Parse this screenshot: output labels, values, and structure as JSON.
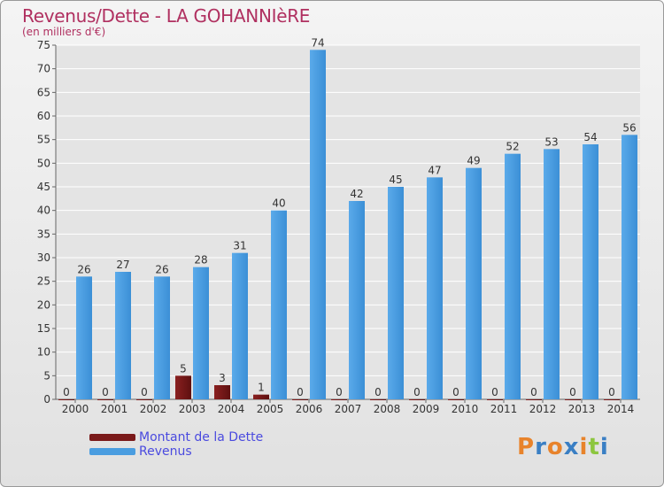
{
  "chart_data": {
    "type": "bar",
    "title": "Revenus/Dette - LA GOHANNIèRE",
    "subtitle": "(en milliers d'€)",
    "categories": [
      "2000",
      "2001",
      "2002",
      "2003",
      "2004",
      "2005",
      "2006",
      "2007",
      "2008",
      "2009",
      "2010",
      "2011",
      "2012",
      "2013",
      "2014"
    ],
    "series": [
      {
        "name": "Montant de la Dette",
        "color": "#7a1a1a",
        "values": [
          0,
          0,
          0,
          5,
          3,
          1,
          0,
          0,
          0,
          0,
          0,
          0,
          0,
          0,
          0
        ]
      },
      {
        "name": "Revenus",
        "color": "#4a9de0",
        "values": [
          26,
          27,
          26,
          28,
          31,
          40,
          74,
          42,
          45,
          47,
          49,
          52,
          53,
          54,
          56
        ]
      }
    ],
    "ylim": [
      0,
      75
    ],
    "yticks": [
      0,
      5,
      10,
      15,
      20,
      25,
      30,
      35,
      40,
      45,
      50,
      55,
      60,
      65,
      70,
      75
    ],
    "grid": true,
    "legend": "bottom-left"
  },
  "logo": {
    "text": "Proxiti",
    "colors": [
      "#e8832b",
      "#3a7fc4",
      "#e8832b",
      "#3a7fc4",
      "#e8832b",
      "#8cc63f",
      "#3a7fc4"
    ]
  }
}
